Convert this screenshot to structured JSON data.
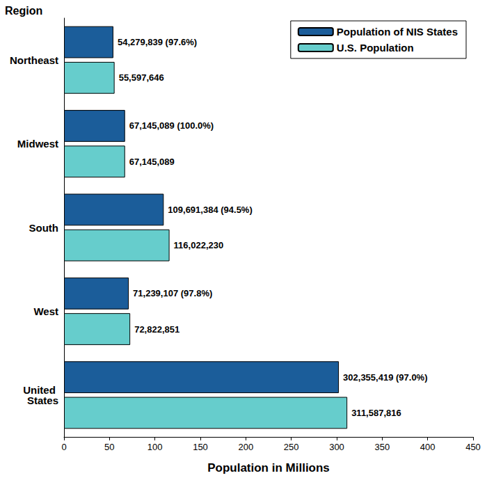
{
  "chart_data": {
    "type": "bar",
    "orientation": "horizontal",
    "y_label": "Region",
    "x_label": "Population in Millions",
    "categories": [
      "Northeast",
      "Midwest",
      "South",
      "West",
      "United States"
    ],
    "series": [
      {
        "name": "Population of NIS States",
        "color": "#1b5d9a",
        "values": [
          54.279839,
          67.145089,
          109.691384,
          71.239107,
          302.355419
        ],
        "value_labels": [
          "54,279,839 (97.6%)",
          "67,145,089 (100.0%)",
          "109,691,384 (94.5%)",
          "71,239,107 (97.8%)",
          "302,355,419 (97.0%)"
        ]
      },
      {
        "name": "U.S. Population",
        "color": "#66cdcc",
        "values": [
          55.597646,
          67.145089,
          116.02223,
          72.822851,
          311.587816
        ],
        "value_labels": [
          "55,597,646",
          "67,145,089",
          "116,022,230",
          "72,822,851",
          "311,587,816"
        ]
      }
    ],
    "xlim": [
      0,
      450
    ],
    "xticks": [
      0,
      50,
      100,
      150,
      200,
      250,
      300,
      350,
      400,
      450
    ],
    "grid": false,
    "legend": "upper right",
    "data_labels": true
  }
}
